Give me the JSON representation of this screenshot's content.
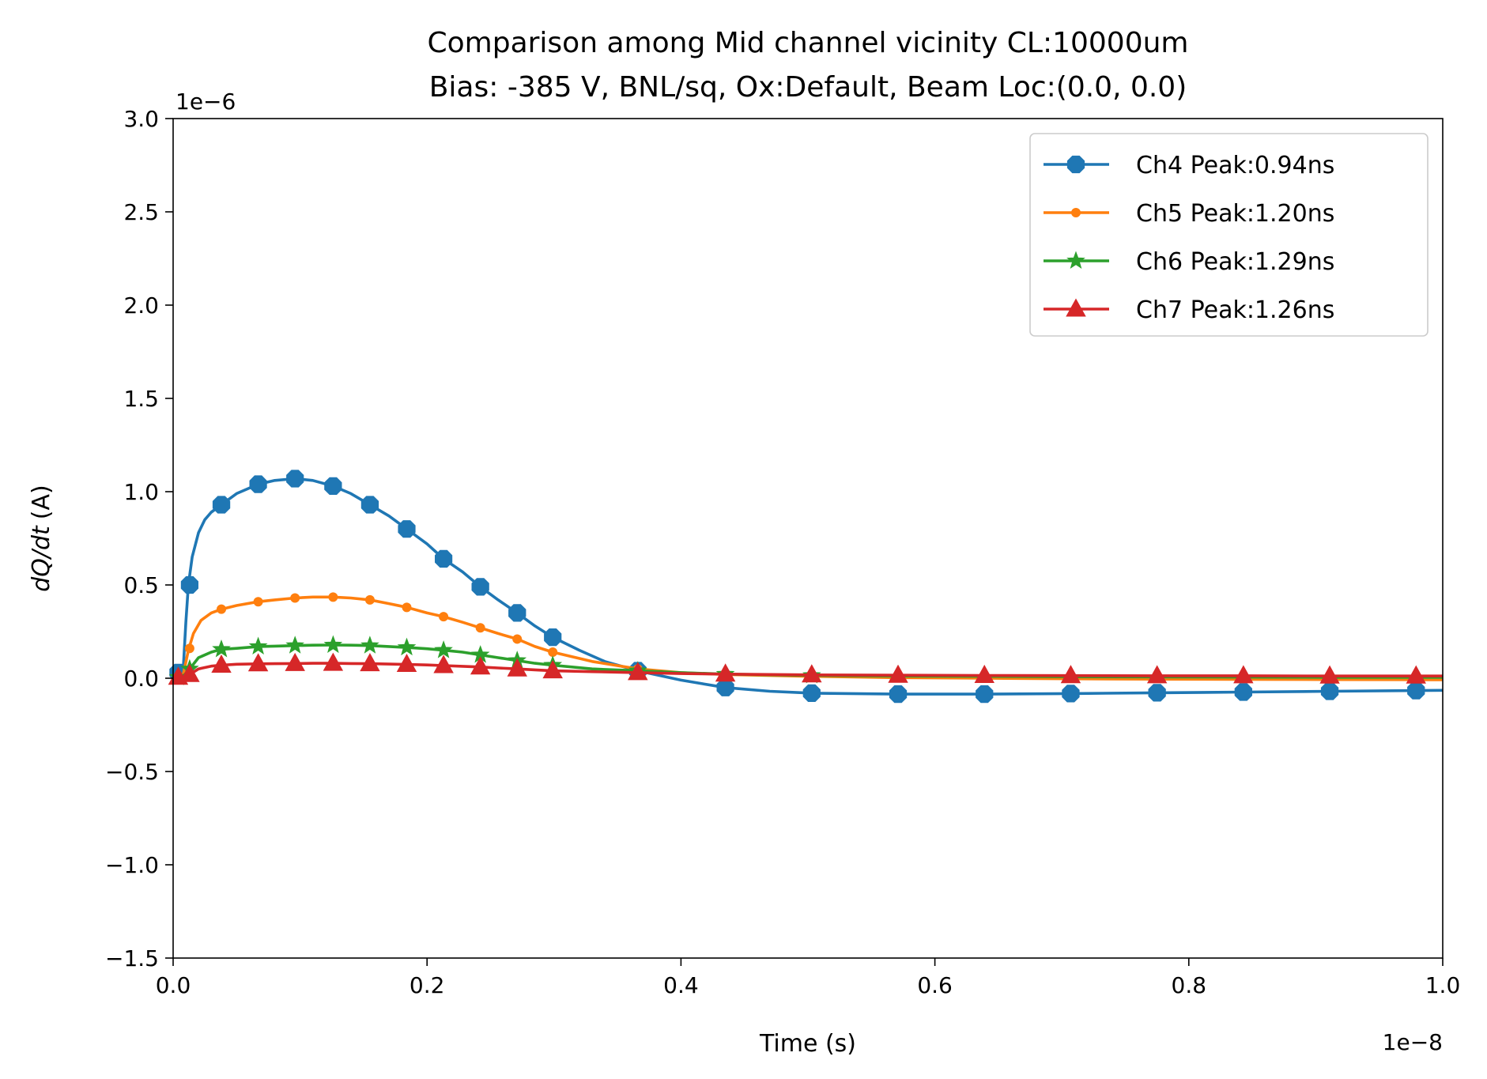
{
  "chart_data": {
    "type": "line",
    "title": "Comparison among Mid channel vicinity CL:10000um",
    "subtitle": "Bias: -385 V, BNL/sq, Ox:Default, Beam Loc:(0.0, 0.0)",
    "xlabel": "Time (s)",
    "ylabel_italic": "dQ/dt",
    "ylabel_unit": "(A)",
    "x_offset_label": "1e−8",
    "y_offset_label": "1e−6",
    "xlim": [
      0.0,
      1.0
    ],
    "ylim": [
      -1.5,
      3.0
    ],
    "x_ticks": [
      0.0,
      0.2,
      0.4,
      0.6,
      0.8,
      1.0
    ],
    "x_tick_labels": [
      "0.0",
      "0.2",
      "0.4",
      "0.6",
      "0.8",
      "1.0"
    ],
    "y_ticks": [
      -1.5,
      -1.0,
      -0.5,
      0.0,
      0.5,
      1.0,
      1.5,
      2.0,
      2.5,
      3.0
    ],
    "y_tick_labels": [
      "−1.5",
      "−1.0",
      "−0.5",
      "0.0",
      "0.5",
      "1.0",
      "1.5",
      "2.0",
      "2.5",
      "3.0"
    ],
    "grid": false,
    "legend_position": "top-right",
    "series": [
      {
        "name": "Ch4 Peak:0.94ns",
        "color": "#1f77b4",
        "marker": "octagon",
        "x": [
          0.0,
          0.004,
          0.008,
          0.01,
          0.012,
          0.015,
          0.02,
          0.025,
          0.03,
          0.038,
          0.05,
          0.067,
          0.08,
          0.096,
          0.11,
          0.126,
          0.14,
          0.155,
          0.17,
          0.184,
          0.2,
          0.213,
          0.228,
          0.242,
          0.256,
          0.271,
          0.285,
          0.299,
          0.32,
          0.34,
          0.366,
          0.4,
          0.435,
          0.47,
          0.503,
          0.571,
          0.639,
          0.707,
          0.775,
          0.843,
          0.911,
          0.979,
          1.0
        ],
        "y": [
          0.0,
          0.03,
          0.05,
          0.3,
          0.5,
          0.65,
          0.78,
          0.85,
          0.89,
          0.93,
          0.99,
          1.04,
          1.06,
          1.07,
          1.06,
          1.03,
          0.99,
          0.93,
          0.87,
          0.8,
          0.72,
          0.64,
          0.57,
          0.49,
          0.42,
          0.35,
          0.28,
          0.22,
          0.15,
          0.09,
          0.04,
          -0.01,
          -0.05,
          -0.07,
          -0.08,
          -0.085,
          -0.085,
          -0.082,
          -0.078,
          -0.074,
          -0.07,
          -0.066,
          -0.065
        ],
        "marker_x": [
          0.004,
          0.013,
          0.038,
          0.067,
          0.096,
          0.126,
          0.155,
          0.184,
          0.213,
          0.242,
          0.271,
          0.299,
          0.366,
          0.435,
          0.503,
          0.571,
          0.639,
          0.707,
          0.775,
          0.843,
          0.911,
          0.979
        ],
        "marker_y": [
          0.03,
          0.5,
          0.93,
          1.04,
          1.07,
          1.03,
          0.93,
          0.8,
          0.64,
          0.49,
          0.35,
          0.22,
          0.04,
          -0.05,
          -0.08,
          -0.085,
          -0.085,
          -0.082,
          -0.078,
          -0.074,
          -0.07,
          -0.066
        ]
      },
      {
        "name": "Ch5 Peak:1.20ns",
        "color": "#ff7f0e",
        "marker": "dot",
        "x": [
          0.0,
          0.008,
          0.012,
          0.016,
          0.022,
          0.03,
          0.038,
          0.05,
          0.067,
          0.08,
          0.096,
          0.11,
          0.126,
          0.14,
          0.155,
          0.17,
          0.184,
          0.2,
          0.213,
          0.228,
          0.242,
          0.256,
          0.271,
          0.285,
          0.299,
          0.33,
          0.366,
          0.4,
          0.435,
          0.503,
          0.571,
          0.639,
          0.707,
          0.775,
          0.843,
          0.911,
          0.979,
          1.0
        ],
        "y": [
          0.0,
          0.02,
          0.15,
          0.24,
          0.31,
          0.35,
          0.37,
          0.39,
          0.41,
          0.42,
          0.43,
          0.435,
          0.435,
          0.43,
          0.42,
          0.4,
          0.38,
          0.35,
          0.33,
          0.3,
          0.27,
          0.24,
          0.21,
          0.17,
          0.14,
          0.09,
          0.05,
          0.03,
          0.02,
          0.01,
          0.003,
          0.0,
          -0.003,
          -0.005,
          -0.006,
          -0.007,
          -0.008,
          -0.008
        ],
        "marker_x": [
          0.004,
          0.013,
          0.038,
          0.067,
          0.096,
          0.126,
          0.155,
          0.184,
          0.213,
          0.242,
          0.271,
          0.299,
          0.366
        ],
        "marker_y": [
          0.01,
          0.16,
          0.37,
          0.41,
          0.43,
          0.435,
          0.42,
          0.38,
          0.33,
          0.27,
          0.21,
          0.14,
          0.05
        ]
      },
      {
        "name": "Ch6 Peak:1.29ns",
        "color": "#2ca02c",
        "marker": "star",
        "x": [
          0.0,
          0.008,
          0.013,
          0.02,
          0.03,
          0.038,
          0.05,
          0.067,
          0.08,
          0.096,
          0.11,
          0.126,
          0.14,
          0.155,
          0.17,
          0.184,
          0.2,
          0.213,
          0.228,
          0.242,
          0.256,
          0.271,
          0.285,
          0.299,
          0.33,
          0.366,
          0.4,
          0.435,
          0.503,
          0.571,
          0.639,
          0.707,
          0.775,
          0.843,
          0.911,
          0.979,
          1.0
        ],
        "y": [
          0.0,
          0.01,
          0.05,
          0.11,
          0.14,
          0.155,
          0.16,
          0.17,
          0.172,
          0.175,
          0.177,
          0.178,
          0.177,
          0.175,
          0.17,
          0.165,
          0.158,
          0.15,
          0.14,
          0.125,
          0.11,
          0.095,
          0.08,
          0.07,
          0.05,
          0.04,
          0.03,
          0.022,
          0.015,
          0.012,
          0.01,
          0.008,
          0.007,
          0.006,
          0.005,
          0.005,
          0.005
        ],
        "marker_x": [
          0.004,
          0.013,
          0.038,
          0.067,
          0.096,
          0.126,
          0.155,
          0.184,
          0.213,
          0.242,
          0.271,
          0.299,
          0.366,
          0.435,
          0.503
        ],
        "marker_y": [
          0.005,
          0.05,
          0.155,
          0.17,
          0.175,
          0.178,
          0.175,
          0.165,
          0.15,
          0.125,
          0.095,
          0.07,
          0.04,
          0.022,
          0.015
        ]
      },
      {
        "name": "Ch7 Peak:1.26ns",
        "color": "#d62728",
        "marker": "triangle",
        "x": [
          0.0,
          0.008,
          0.013,
          0.02,
          0.03,
          0.038,
          0.05,
          0.067,
          0.08,
          0.096,
          0.11,
          0.126,
          0.14,
          0.155,
          0.17,
          0.184,
          0.2,
          0.213,
          0.228,
          0.242,
          0.256,
          0.271,
          0.285,
          0.299,
          0.33,
          0.366,
          0.4,
          0.435,
          0.503,
          0.571,
          0.639,
          0.707,
          0.775,
          0.843,
          0.911,
          0.979,
          1.0
        ],
        "y": [
          0.0,
          0.005,
          0.02,
          0.05,
          0.065,
          0.07,
          0.075,
          0.077,
          0.078,
          0.079,
          0.08,
          0.08,
          0.079,
          0.078,
          0.076,
          0.074,
          0.071,
          0.068,
          0.064,
          0.06,
          0.055,
          0.05,
          0.045,
          0.04,
          0.035,
          0.03,
          0.025,
          0.022,
          0.018,
          0.016,
          0.015,
          0.014,
          0.013,
          0.013,
          0.012,
          0.012,
          0.012
        ],
        "marker_x": [
          0.004,
          0.013,
          0.038,
          0.067,
          0.096,
          0.126,
          0.155,
          0.184,
          0.213,
          0.242,
          0.271,
          0.299,
          0.366,
          0.435,
          0.503,
          0.571,
          0.639,
          0.707,
          0.775,
          0.843,
          0.911,
          0.979
        ],
        "marker_y": [
          0.005,
          0.02,
          0.07,
          0.077,
          0.079,
          0.08,
          0.078,
          0.074,
          0.068,
          0.06,
          0.05,
          0.04,
          0.03,
          0.022,
          0.018,
          0.016,
          0.015,
          0.014,
          0.013,
          0.013,
          0.012,
          0.012
        ]
      }
    ]
  }
}
